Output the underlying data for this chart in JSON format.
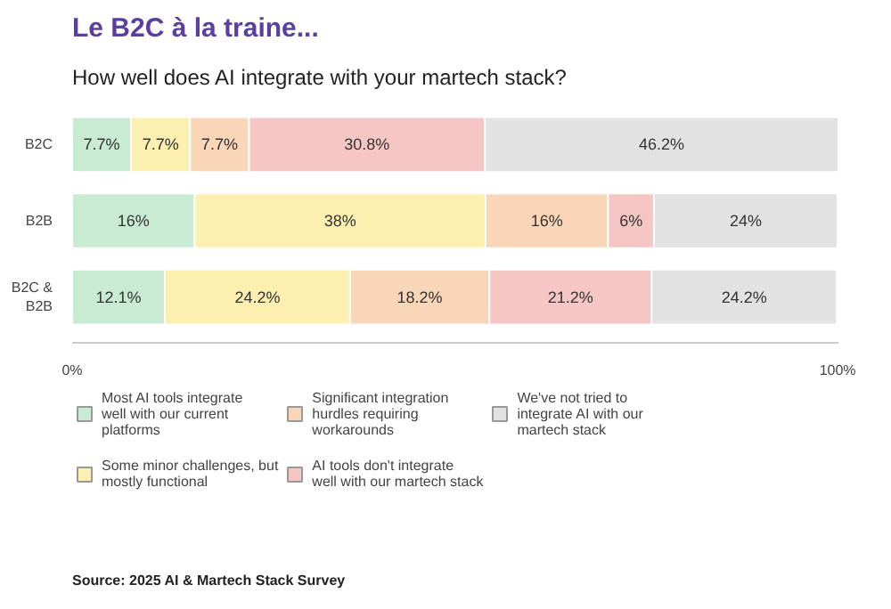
{
  "chart_data": {
    "type": "bar",
    "orientation": "horizontal",
    "stacked": true,
    "title": "Le B2C à la traine...",
    "subtitle": "How well does AI integrate with your martech stack?",
    "categories": [
      "B2C",
      "B2B",
      "B2C & B2B"
    ],
    "series": [
      {
        "name": "Most AI tools integrate well with our current platforms",
        "color": "#c9ebd3",
        "values": [
          7.7,
          16,
          12.1
        ],
        "value_labels": [
          "7.7%",
          "16%",
          "12.1%"
        ]
      },
      {
        "name": "Some minor challenges, but mostly functional",
        "color": "#fcefb0",
        "values": [
          7.7,
          38,
          24.2
        ],
        "value_labels": [
          "7.7%",
          "38%",
          "24.2%"
        ]
      },
      {
        "name": "Significant integration hurdles requiring workarounds",
        "color": "#f9d6b8",
        "values": [
          7.7,
          16,
          18.2
        ],
        "value_labels": [
          "7.7%",
          "16%",
          "18.2%"
        ]
      },
      {
        "name": "AI tools don't integrate well with our martech stack",
        "color": "#f6c6c4",
        "values": [
          30.8,
          6,
          21.2
        ],
        "value_labels": [
          "30.8%",
          "6%",
          "21.2%"
        ]
      },
      {
        "name": "We've not tried to integrate AI with our martech stack",
        "color": "#e2e2e2",
        "values": [
          46.2,
          24,
          24.2
        ],
        "value_labels": [
          "46.2%",
          "24%",
          "24.2%"
        ]
      }
    ],
    "xlim": [
      0,
      100.1
    ],
    "xticks": [
      {
        "value": 0,
        "label": "0%"
      },
      {
        "value": 100,
        "label": "100%"
      }
    ],
    "grid": false,
    "legend": "bottom",
    "annotations": [
      "Source: 2025 AI & Martech Stack Survey"
    ]
  }
}
